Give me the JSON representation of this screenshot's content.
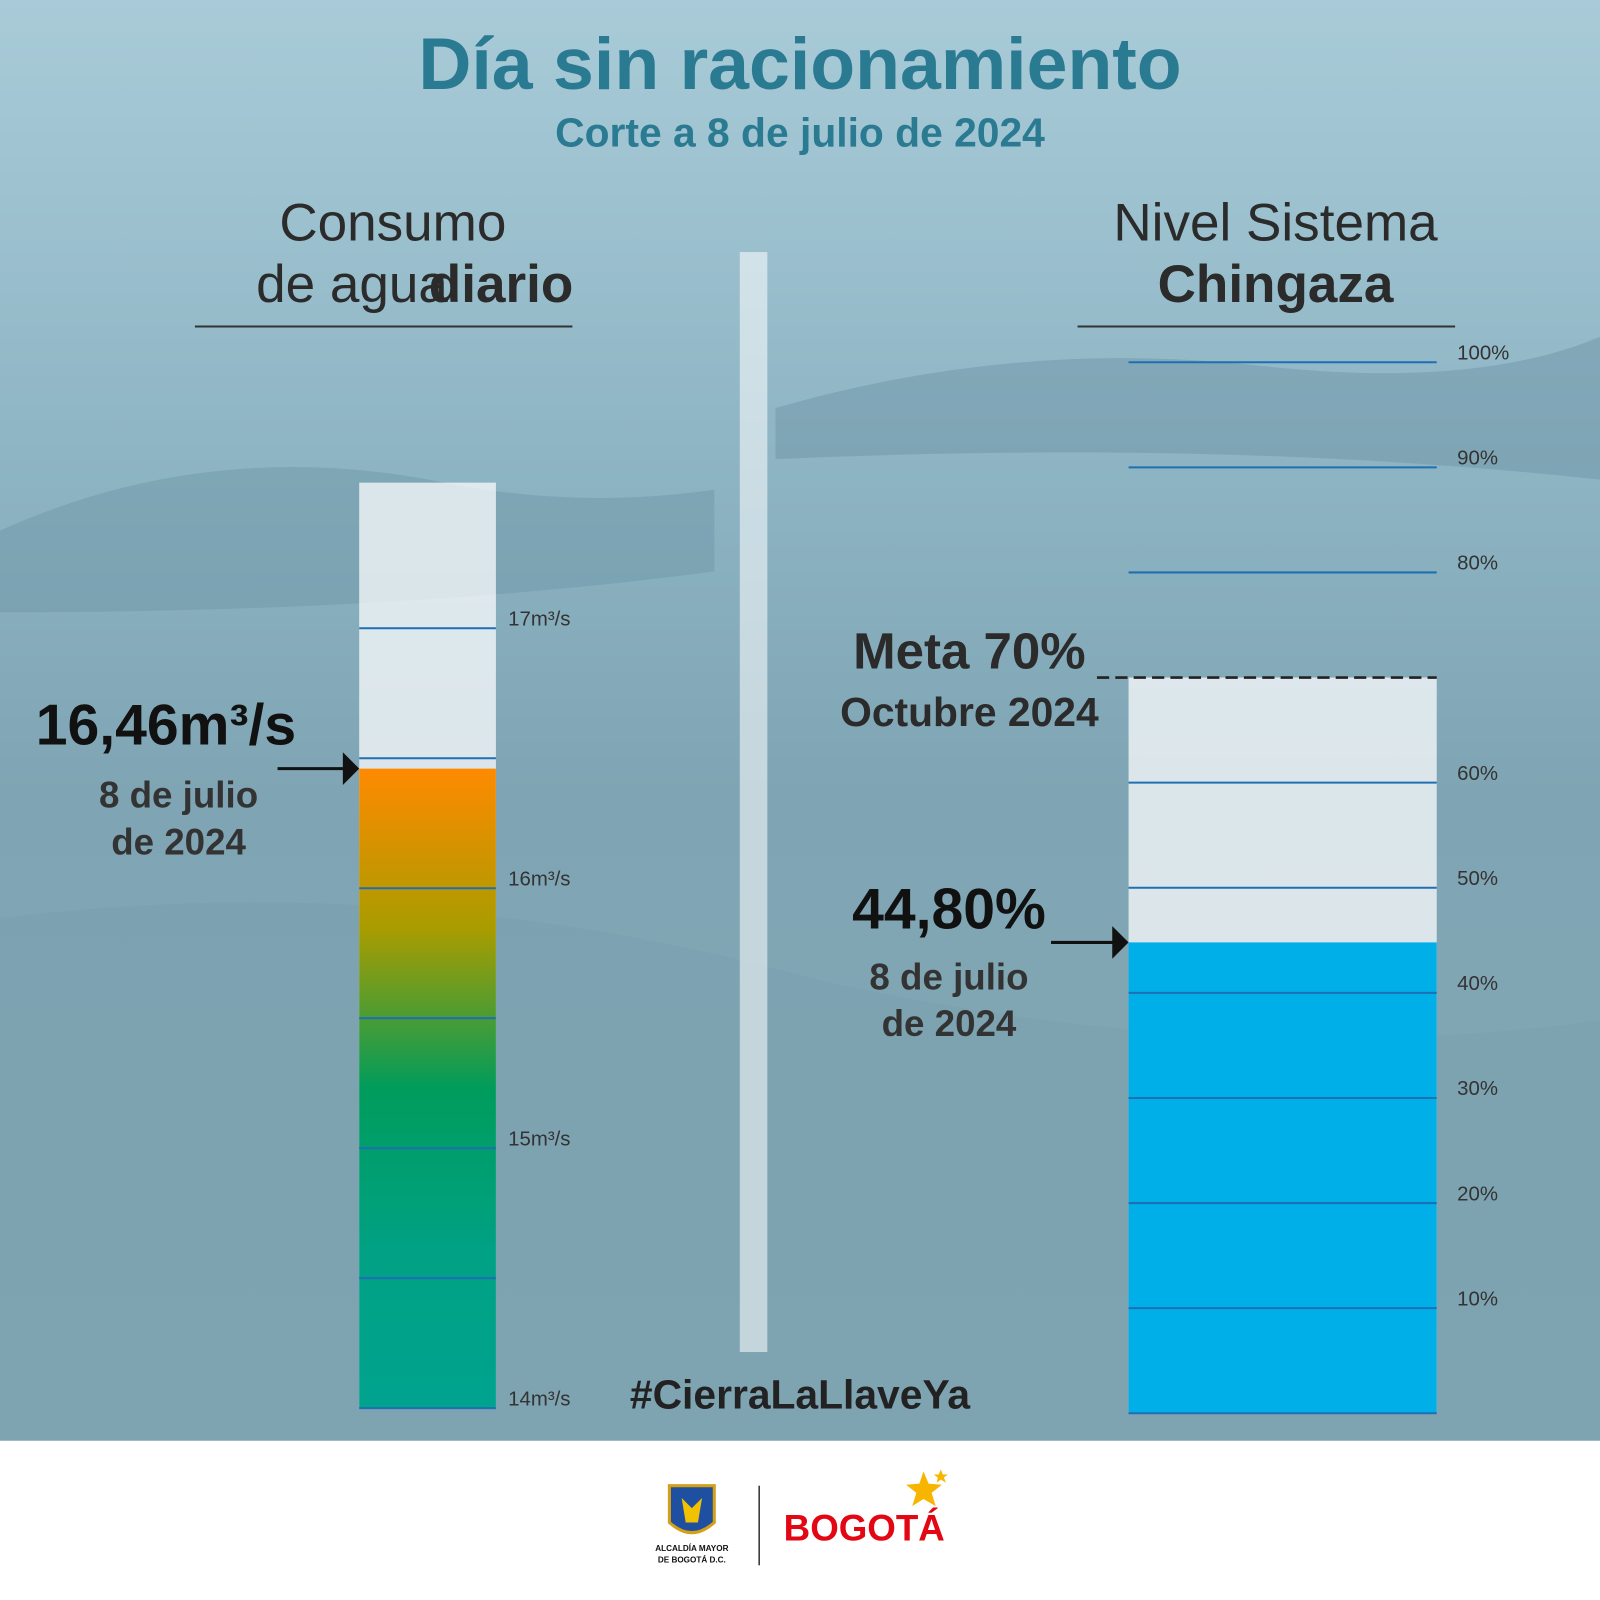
{
  "title": "Día sin racionamiento",
  "subtitle": "Corte a 8 de julio de 2024",
  "hashtag": "#CierraLaLlaveYa",
  "footer": {
    "alcaldia_lines": [
      "ALCALDÍA MAYOR",
      "DE BOGOTÁ D.C."
    ],
    "brand": "BOGOTÁ"
  },
  "chart_data": [
    {
      "type": "gauge",
      "title_lines": [
        "Consumo",
        "de agua"
      ],
      "title_bold": "diario",
      "values": [
        16.46
      ],
      "value_labels": [
        "16,46m³/s"
      ],
      "annotation_lines": [
        "8 de julio",
        "de 2024"
      ],
      "ylim": [
        14,
        17.56
      ],
      "yticks": [
        {
          "value": 14,
          "label": "14m³/s"
        },
        {
          "value": 15,
          "label": "15m³/s"
        },
        {
          "value": 16,
          "label": "16m³/s"
        },
        {
          "value": 17,
          "label": "17m³/s"
        }
      ],
      "minor_ticks": [
        14.5,
        15.5,
        16.5
      ],
      "gradient": [
        "#00a38e",
        "#00a184",
        "#009c5c",
        "#a99c00",
        "#ff8a00"
      ],
      "tick_color": "#1f6fb5"
    },
    {
      "type": "gauge",
      "title_lines": [
        "Nivel Sistema"
      ],
      "title_bold": "Chingaza",
      "values": [
        44.8
      ],
      "value_labels": [
        "44,80%"
      ],
      "annotation_lines": [
        "8 de julio",
        "de 2024"
      ],
      "target": {
        "value": 70,
        "label": "Meta 70%",
        "sublabel": "Octubre 2024"
      },
      "ylim": [
        0,
        100
      ],
      "yticks": [
        {
          "value": 10,
          "label": "10%"
        },
        {
          "value": 20,
          "label": "20%"
        },
        {
          "value": 30,
          "label": "30%"
        },
        {
          "value": 40,
          "label": "40%"
        },
        {
          "value": 50,
          "label": "50%"
        },
        {
          "value": 60,
          "label": "60%"
        },
        {
          "value": 80,
          "label": "80%"
        },
        {
          "value": 90,
          "label": "90%"
        },
        {
          "value": 100,
          "label": "100%"
        }
      ],
      "minor_ticks": [
        0
      ],
      "color": "#00aee8",
      "tick_color": "#1f6fb5"
    }
  ]
}
